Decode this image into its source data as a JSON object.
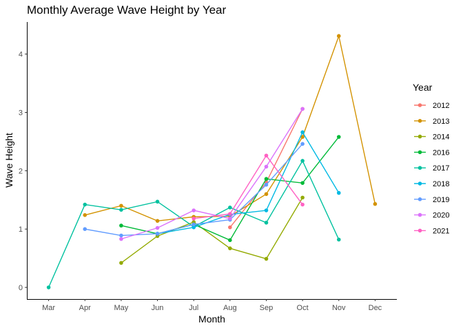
{
  "chart_data": {
    "type": "line",
    "title": "Monthly Average Wave Height by Year",
    "xlabel": "Month",
    "ylabel": "Wave Height",
    "categories": [
      "Mar",
      "Apr",
      "May",
      "Jun",
      "Jul",
      "Aug",
      "Sep",
      "Oct",
      "Nov",
      "Dec"
    ],
    "yticks": [
      0,
      1,
      2,
      3,
      4
    ],
    "ylim": [
      -0.2,
      4.55
    ],
    "grid": false,
    "legend_title": "Year",
    "legend_position": "right",
    "series": [
      {
        "name": "2012",
        "color": "#F8766D",
        "values": [
          null,
          null,
          null,
          null,
          null,
          1.03,
          1.8,
          3.06,
          null,
          null
        ]
      },
      {
        "name": "2013",
        "color": "#D39200",
        "values": [
          null,
          1.24,
          1.4,
          1.14,
          1.21,
          1.22,
          1.6,
          2.58,
          4.31,
          1.43
        ]
      },
      {
        "name": "2014",
        "color": "#93AA00",
        "values": [
          null,
          null,
          0.42,
          0.88,
          1.12,
          0.67,
          0.49,
          1.54,
          null,
          null
        ]
      },
      {
        "name": "2016",
        "color": "#00BA38",
        "values": [
          null,
          null,
          1.06,
          0.92,
          1.08,
          0.81,
          1.86,
          1.79,
          2.58,
          null
        ]
      },
      {
        "name": "2017",
        "color": "#00C19F",
        "values": [
          0.0,
          1.42,
          1.33,
          1.47,
          1.04,
          1.37,
          1.11,
          2.17,
          0.82,
          null
        ]
      },
      {
        "name": "2018",
        "color": "#00B9E3",
        "values": [
          null,
          null,
          null,
          0.92,
          1.03,
          1.25,
          1.32,
          2.66,
          1.62,
          null
        ]
      },
      {
        "name": "2019",
        "color": "#619CFF",
        "values": [
          null,
          1.0,
          0.89,
          0.92,
          1.08,
          1.16,
          1.76,
          2.46,
          null,
          null
        ]
      },
      {
        "name": "2020",
        "color": "#DB72FB",
        "values": [
          null,
          null,
          0.83,
          1.02,
          1.32,
          1.18,
          2.07,
          3.06,
          null,
          null
        ]
      },
      {
        "name": "2021",
        "color": "#FF61C3",
        "values": [
          null,
          null,
          null,
          null,
          1.18,
          1.26,
          2.26,
          1.42,
          null,
          null
        ]
      }
    ]
  }
}
